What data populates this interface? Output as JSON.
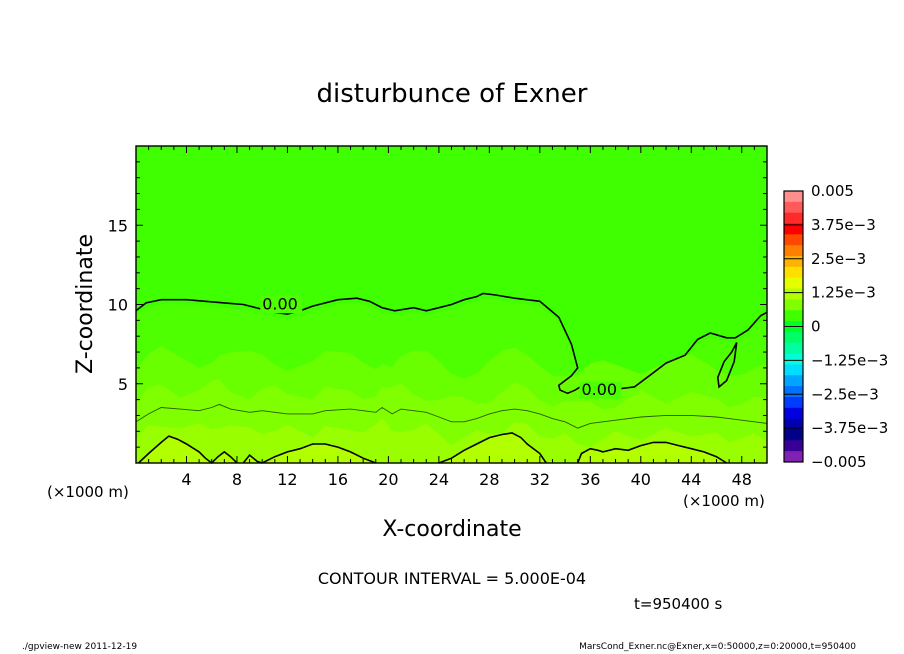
{
  "chart_data": {
    "type": "contour",
    "title": "disturbunce of Exner",
    "xlabel": "X-coordinate",
    "ylabel": "Z-coordinate",
    "x_unit_left": "(×1000 m)",
    "x_unit_right": "(×1000 m)",
    "xlim": [
      0,
      50
    ],
    "ylim": [
      0,
      20
    ],
    "x_ticks": [
      4,
      8,
      12,
      16,
      20,
      24,
      28,
      32,
      36,
      40,
      44,
      48
    ],
    "y_ticks": [
      5,
      10,
      15
    ],
    "contour_interval_text": "CONTOUR INTERVAL = 5.000E-04",
    "time_text": "t=950400 s",
    "contour_label": "0.00",
    "zero_contour": [
      [
        0,
        9.6
      ],
      [
        0.8,
        10.1
      ],
      [
        2,
        10.3
      ],
      [
        4,
        10.3
      ],
      [
        5.5,
        10.2
      ],
      [
        7,
        10.1
      ],
      [
        8.5,
        10.0
      ],
      [
        10,
        9.7
      ],
      [
        11,
        9.5
      ],
      [
        12,
        9.4
      ],
      [
        13,
        9.6
      ],
      [
        14,
        9.9
      ],
      [
        16,
        10.3
      ],
      [
        17.5,
        10.4
      ],
      [
        18.5,
        10.2
      ],
      [
        19.5,
        9.8
      ],
      [
        20.5,
        9.6
      ],
      [
        22,
        9.8
      ],
      [
        23,
        9.6
      ],
      [
        24,
        9.8
      ],
      [
        25,
        10.0
      ],
      [
        26,
        10.3
      ],
      [
        27,
        10.5
      ],
      [
        27.5,
        10.7
      ],
      [
        28.5,
        10.6
      ],
      [
        30,
        10.4
      ],
      [
        32,
        10.2
      ],
      [
        33.5,
        9.2
      ],
      [
        34.5,
        7.5
      ],
      [
        35,
        6.0
      ],
      [
        34.5,
        5.5
      ],
      [
        33.5,
        4.9
      ],
      [
        33.6,
        4.6
      ],
      [
        34.2,
        4.4
      ],
      [
        34.8,
        4.6
      ],
      [
        35.2,
        4.8
      ],
      [
        36,
        4.6
      ],
      [
        37.5,
        4.6
      ],
      [
        39.5,
        4.8
      ],
      [
        41,
        5.7
      ],
      [
        42,
        6.3
      ],
      [
        43.5,
        6.8
      ],
      [
        44.5,
        7.8
      ],
      [
        45.5,
        8.2
      ],
      [
        46.8,
        7.9
      ],
      [
        47.5,
        7.9
      ],
      [
        48.5,
        8.4
      ],
      [
        49.5,
        9.3
      ],
      [
        50,
        9.5
      ]
    ],
    "closed_contour": [
      [
        47.2,
        7.0
      ],
      [
        47.6,
        7.6
      ],
      [
        47.4,
        6.4
      ],
      [
        46.8,
        5.2
      ],
      [
        46.2,
        4.8
      ],
      [
        46.1,
        5.4
      ],
      [
        46.6,
        6.4
      ],
      [
        47.2,
        7.0
      ]
    ],
    "thin_contour": [
      [
        0,
        2.6
      ],
      [
        1,
        3.1
      ],
      [
        2,
        3.5
      ],
      [
        3.5,
        3.4
      ],
      [
        5,
        3.3
      ],
      [
        6,
        3.5
      ],
      [
        6.6,
        3.7
      ],
      [
        7.5,
        3.4
      ],
      [
        9,
        3.2
      ],
      [
        10,
        3.3
      ],
      [
        11,
        3.2
      ],
      [
        12,
        3.1
      ],
      [
        14,
        3.1
      ],
      [
        15,
        3.3
      ],
      [
        17,
        3.4
      ],
      [
        18,
        3.3
      ],
      [
        19,
        3.2
      ],
      [
        19.5,
        3.5
      ],
      [
        20.3,
        3.1
      ],
      [
        21,
        3.4
      ],
      [
        22,
        3.3
      ],
      [
        23,
        3.2
      ],
      [
        24,
        2.9
      ],
      [
        25,
        2.6
      ],
      [
        26,
        2.6
      ],
      [
        27,
        2.8
      ],
      [
        28,
        3.1
      ],
      [
        29,
        3.3
      ],
      [
        30,
        3.4
      ],
      [
        31,
        3.3
      ],
      [
        32,
        3.1
      ],
      [
        33,
        2.8
      ],
      [
        34,
        2.6
      ],
      [
        35,
        2.2
      ],
      [
        36,
        2.5
      ],
      [
        37,
        2.6
      ],
      [
        38,
        2.7
      ],
      [
        40,
        2.9
      ],
      [
        42,
        3.0
      ],
      [
        44,
        3.0
      ],
      [
        46,
        2.9
      ],
      [
        47,
        2.8
      ],
      [
        48,
        2.7
      ],
      [
        49,
        2.6
      ],
      [
        50,
        2.5
      ]
    ],
    "lower_contours": [
      [
        [
          0.2,
          0
        ],
        [
          1,
          0.6
        ],
        [
          2,
          1.3
        ],
        [
          2.6,
          1.7
        ],
        [
          3.3,
          1.5
        ],
        [
          4,
          1.2
        ],
        [
          5,
          0.7
        ],
        [
          5.5,
          0.3
        ],
        [
          6,
          0
        ],
        [
          6.5,
          0.4
        ],
        [
          7,
          0.7
        ],
        [
          7.5,
          0.4
        ],
        [
          8,
          0
        ]
      ],
      [
        [
          8.5,
          0
        ],
        [
          9,
          0.5
        ],
        [
          9.6,
          0.1
        ],
        [
          10,
          0
        ]
      ],
      [
        [
          10,
          0
        ],
        [
          11,
          0.4
        ],
        [
          12,
          0.7
        ],
        [
          13,
          0.9
        ],
        [
          14,
          1.2
        ],
        [
          15,
          1.2
        ],
        [
          15.5,
          1.1
        ],
        [
          16,
          1.0
        ],
        [
          17,
          0.7
        ],
        [
          18,
          0.3
        ],
        [
          19,
          0
        ]
      ],
      [
        [
          24,
          0
        ],
        [
          25,
          0.3
        ],
        [
          26,
          0.8
        ],
        [
          27,
          1.2
        ],
        [
          28,
          1.6
        ],
        [
          29,
          1.8
        ],
        [
          29.8,
          1.9
        ],
        [
          30.5,
          1.6
        ],
        [
          31,
          1.2
        ],
        [
          32,
          0.6
        ],
        [
          32.5,
          0
        ]
      ],
      [
        [
          35,
          0
        ],
        [
          35.3,
          0.6
        ],
        [
          36,
          0.9
        ],
        [
          36.6,
          0.8
        ],
        [
          37,
          0.7
        ],
        [
          38,
          0.9
        ],
        [
          39,
          0.8
        ],
        [
          40,
          1.1
        ],
        [
          41,
          1.3
        ],
        [
          42,
          1.3
        ],
        [
          43,
          1.1
        ],
        [
          44,
          0.9
        ],
        [
          45,
          0.7
        ],
        [
          46,
          0.4
        ],
        [
          46.8,
          0
        ]
      ]
    ],
    "colorbar": {
      "labels": [
        "0.005",
        "3.75e−3",
        "2.5e−3",
        "1.25e−3",
        "0",
        "−1.25e−3",
        "−2.5e−3",
        "−3.75e−3",
        "−0.005"
      ],
      "colors": [
        "#ff8f8f",
        "#ff5a5a",
        "#ff2b2b",
        "#ff0000",
        "#ff4800",
        "#ff7f00",
        "#ffb200",
        "#ffdf00",
        "#e5ff00",
        "#b2ff00",
        "#7fff00",
        "#3fff00",
        "#00ff26",
        "#00ff66",
        "#00ffa0",
        "#00ffd8",
        "#00ddff",
        "#00a5ff",
        "#0072ff",
        "#003cff",
        "#0000e0",
        "#0000b0",
        "#000088",
        "#3a0096",
        "#7f22b4"
      ]
    },
    "field_colors": {
      "upper": "#3fff00",
      "layer_1": "#4dff00",
      "layer_2": "#69ff00",
      "layer_3": "#7fff00",
      "layer_4": "#99ff00",
      "layer_5": "#b2ff00"
    }
  },
  "footer": {
    "left": "./gpview-new   2011-12-19",
    "right": "MarsCond_Exner.nc@Exner,x=0:50000,z=0:20000,t=950400"
  }
}
